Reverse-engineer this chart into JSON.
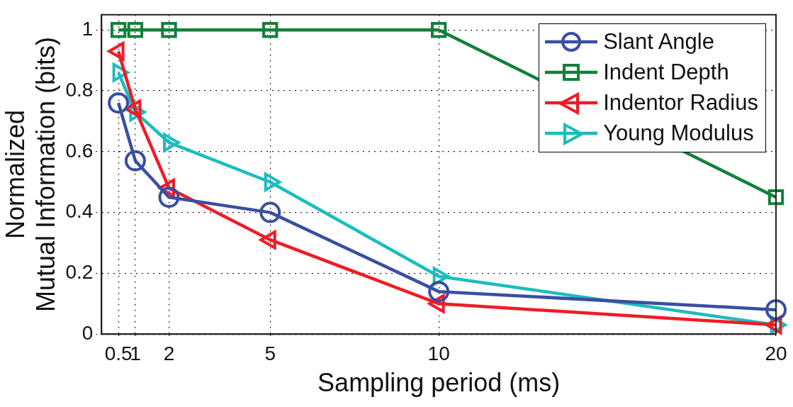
{
  "chart_data": {
    "type": "line",
    "xlabel": "Sampling period (ms)",
    "ylabel": "Normalized\nMutual Information (bits)",
    "x": [
      0.5,
      1,
      2,
      5,
      10,
      20
    ],
    "xlim": [
      0,
      20
    ],
    "xticks": [
      0.5,
      1,
      2,
      5,
      10,
      20
    ],
    "ylim": [
      0,
      1.05
    ],
    "yticks": [
      0,
      0.2,
      0.4,
      0.6,
      0.8,
      1
    ],
    "grid": true,
    "legend": "top right",
    "line_style": "solid",
    "series": [
      {
        "name": "Slant Angle",
        "color": "#3a4fa0",
        "marker": "circle",
        "values": [
          0.76,
          0.57,
          0.45,
          0.4,
          0.14,
          0.08
        ]
      },
      {
        "name": "Indent Depth",
        "color": "#13803a",
        "marker": "square",
        "values": [
          1,
          1,
          1,
          1,
          1,
          0.45
        ]
      },
      {
        "name": "Indentor Radius",
        "color": "#ee1c25",
        "marker": "triangle-left",
        "values": [
          0.93,
          0.74,
          0.48,
          0.31,
          0.1,
          0.03
        ]
      },
      {
        "name": "Young Modulus",
        "color": "#1cbcbf",
        "marker": "triangle-right",
        "values": [
          0.86,
          0.73,
          0.63,
          0.5,
          0.19,
          0.03
        ]
      }
    ]
  }
}
